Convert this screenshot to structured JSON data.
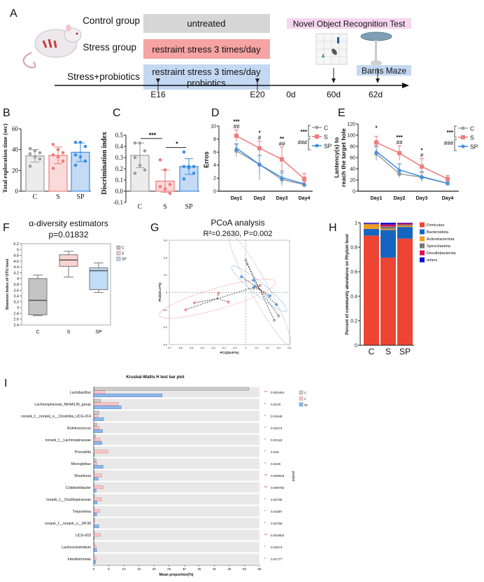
{
  "panel_labels": [
    "A",
    "B",
    "C",
    "D",
    "E",
    "F",
    "G",
    "H",
    "I"
  ],
  "panel_a": {
    "groups": [
      {
        "label": "Control group",
        "treatment": "untreated",
        "color": "#d6d6d6"
      },
      {
        "label": "Stress group",
        "treatment": "restraint stress 3 times/day",
        "color": "#f6a3a3"
      },
      {
        "label": "Stress+probiotics",
        "treatment": "restraint stress 3 times/day",
        "treatment2": "probiotics",
        "color": "#c3d8f2"
      }
    ],
    "tests": {
      "nor": "Novel Object Recognition Test",
      "nor_color": "#f7d6ef",
      "maze": "Barns Maze",
      "maze_color": "#c3d8f2"
    },
    "timeline": [
      "E16",
      "E20",
      "0d",
      "60d",
      "62d"
    ]
  },
  "colors": {
    "C": "#9e9e9e",
    "S": "#f07c7c",
    "SP": "#3a8ee6",
    "C_fill": "#ececec",
    "S_fill": "#fbdada",
    "SP_fill": "#c5daf4"
  },
  "chart_data": [
    {
      "panel": "B",
      "type": "bar",
      "ylabel": "Total exploration time (sec)",
      "categories": [
        "C",
        "S",
        "SP"
      ],
      "values": [
        34,
        34.5,
        37.5
      ],
      "sd": [
        6,
        8,
        9
      ],
      "points": [
        [
          41,
          39,
          37,
          36,
          33,
          31,
          24
        ],
        [
          45,
          40,
          37,
          35,
          33,
          29,
          22
        ],
        [
          47,
          47,
          43,
          35,
          33,
          29,
          25
        ]
      ],
      "ylim": [
        0,
        60
      ],
      "yticks": [
        "0",
        "20",
        "40",
        "60"
      ]
    },
    {
      "panel": "C",
      "type": "bar",
      "ylabel": "Discrimination index",
      "categories": [
        "C",
        "S",
        "SP"
      ],
      "values": [
        0.32,
        0.09,
        0.22
      ],
      "sd": [
        0.11,
        0.1,
        0.07
      ],
      "points": [
        [
          0.43,
          0.43,
          0.36,
          0.3,
          0.23,
          0.19,
          0.16
        ],
        [
          0.28,
          0.19,
          0.06,
          0.04,
          0.02,
          -0.02
        ],
        [
          0.35,
          0.22,
          0.22,
          0.22,
          0.21,
          0.16,
          0.11
        ]
      ],
      "ylim": [
        -0.1,
        0.5
      ],
      "yticks": [
        "-0.1",
        "0.0",
        "0.1",
        "0.2",
        "0.3",
        "0.4",
        "0.5"
      ],
      "significance": [
        {
          "pair": [
            "C",
            "S"
          ],
          "label": "***"
        },
        {
          "pair": [
            "S",
            "SP"
          ],
          "label": "*"
        }
      ]
    },
    {
      "panel": "D",
      "type": "line",
      "ylabel": "Erros",
      "categories": [
        "Day1",
        "Day2",
        "Day3",
        "Day4"
      ],
      "series": [
        {
          "name": "C",
          "values": [
            6.2,
            4.1,
            1.8,
            1.0
          ],
          "err": [
            0.9,
            2.4,
            1.0,
            0.4
          ]
        },
        {
          "name": "S",
          "values": [
            8.5,
            6.6,
            4.9,
            1.9
          ],
          "err": [
            0.9,
            1.1,
            1.9,
            0.8
          ]
        },
        {
          "name": "SP",
          "values": [
            6.6,
            4.1,
            2.1,
            1.1
          ],
          "err": [
            0.7,
            1.4,
            1.0,
            0.5
          ]
        }
      ],
      "annotations": [
        [
          "***",
          "##"
        ],
        [
          "*",
          "#"
        ],
        [
          "**",
          "##"
        ],
        [
          "",
          ""
        ]
      ],
      "legend_brackets": [
        "***",
        "###"
      ],
      "ylim": [
        0,
        10
      ],
      "yticks": [
        "0",
        "2",
        "4",
        "6",
        "8",
        "10"
      ]
    },
    {
      "panel": "E",
      "type": "line",
      "ylabel": "Lantency(s) to reach the target hole",
      "ylabel_line1": "Lantency(s) to",
      "ylabel_line2": "reach the target hole",
      "categories": [
        "Day1",
        "Day2",
        "Day3",
        "Day4"
      ],
      "series": [
        {
          "name": "C",
          "values": [
            67,
            31,
            25,
            14
          ],
          "err": [
            12,
            7,
            8,
            3
          ]
        },
        {
          "name": "S",
          "values": [
            87,
            68,
            44,
            22
          ],
          "err": [
            11,
            13,
            14,
            6
          ]
        },
        {
          "name": "SP",
          "values": [
            71,
            38,
            26,
            14
          ],
          "err": [
            10,
            11,
            9,
            3
          ]
        }
      ],
      "annotations": [
        [
          "*",
          ""
        ],
        [
          "***",
          "##"
        ],
        [
          "*",
          "#"
        ],
        [
          "",
          ""
        ]
      ],
      "legend_brackets": [
        "***",
        "###"
      ],
      "ylim": [
        0,
        120
      ],
      "yticks": [
        "0",
        "20",
        "40",
        "60",
        "80",
        "100",
        "120"
      ]
    },
    {
      "panel": "F",
      "type": "box",
      "title": "α-diversity estimators",
      "subtitle": "p=0.01832",
      "ylabel": "Shannon Index of OTU level",
      "categories": [
        "C",
        "S",
        "SP"
      ],
      "boxes": [
        {
          "min": 2.72,
          "q1": 2.75,
          "median": 3.25,
          "q3": 4.0,
          "max": 4.12
        },
        {
          "min": 4.05,
          "q1": 4.42,
          "median": 4.64,
          "q3": 4.82,
          "max": 4.94
        },
        {
          "min": 3.52,
          "q1": 3.62,
          "median": 4.27,
          "q3": 4.37,
          "max": 4.54
        }
      ],
      "legend": [
        "C",
        "S",
        "SP"
      ],
      "ylim": [
        2.4,
        5.2
      ],
      "yticks": [
        "2.4",
        "2.6",
        "2.8",
        "3",
        "3.2",
        "3.4",
        "3.6",
        "3.8",
        "4",
        "4.2",
        "4.4",
        "4.6",
        "4.8",
        "5",
        "5.2"
      ]
    },
    {
      "panel": "G",
      "type": "scatter",
      "title": "PCoA analysis",
      "subtitle": "R²=0.2630, P=0.002",
      "xlabel": "PC1(25.97%)",
      "ylabel": "PC2(16.17%)",
      "series": [
        {
          "name": "C",
          "points": [
            [
              0,
              0.37
            ],
            [
              0.01,
              0.33
            ],
            [
              0.07,
              0.05
            ],
            [
              0.26,
              -0.32
            ],
            [
              0.3,
              -0.27
            ]
          ]
        },
        {
          "name": "S",
          "points": [
            [
              -0.55,
              -0.2
            ],
            [
              -0.47,
              -0.12
            ],
            [
              -0.25,
              -0.01
            ],
            [
              -0.16,
              -0.11
            ],
            [
              0.13,
              0.08
            ]
          ]
        },
        {
          "name": "SP",
          "points": [
            [
              -0.04,
              0.18
            ],
            [
              0.07,
              0.14
            ],
            [
              0.08,
              0.07
            ],
            [
              0.22,
              -0.04
            ],
            [
              0.28,
              -0.14
            ]
          ]
        }
      ],
      "xlim": [
        -0.7,
        0.4
      ],
      "ylim": [
        -0.6,
        0.6
      ],
      "xticks": [
        "-0.7",
        "-0.6",
        "-0.5",
        "-0.4",
        "-0.3",
        "-0.2",
        "-0.1",
        "0",
        "0.1",
        "0.2",
        "0.3",
        "0.4"
      ],
      "yticks": [
        "-0.6",
        "-0.4",
        "-0.2",
        "0",
        "0.2",
        "0.4",
        "0.6"
      ]
    },
    {
      "panel": "H",
      "type": "stacked-bar",
      "ylabel": "Percent of community abundance on Phylum level",
      "categories": [
        "C",
        "S",
        "SP"
      ],
      "series": [
        {
          "name": "Firmicutes",
          "color": "#ee4433",
          "values": [
            0.895,
            0.715,
            0.87
          ]
        },
        {
          "name": "Bacteroidota",
          "color": "#1565c0",
          "values": [
            0.055,
            0.225,
            0.095
          ]
        },
        {
          "name": "Actinobacteriota",
          "color": "#f59c1a",
          "values": [
            0.035,
            0.01,
            0.01
          ]
        },
        {
          "name": "Spirochaetota",
          "color": "#777777",
          "values": [
            0.005,
            0.02,
            0.01
          ]
        },
        {
          "name": "Desulfobacterota",
          "color": "#e0105a",
          "values": [
            0.003,
            0.015,
            0.01
          ]
        },
        {
          "name": "others",
          "color": "#1010d0",
          "values": [
            0.007,
            0.015,
            0.005
          ]
        }
      ],
      "ylim": [
        0,
        1
      ],
      "yticks": [
        "0",
        "0.2",
        "0.4",
        "0.6",
        "0.8",
        "1"
      ]
    },
    {
      "panel": "I",
      "type": "bar-horizontal",
      "title": "Kruskal-Wallis H test bar plot",
      "xlabel": "Mean proportion(%)",
      "pvalue_label": "pvalue",
      "legend": [
        "C",
        "s",
        "sp"
      ],
      "categories": [
        "Lactobacillus",
        "Lachnospiraceae_NK4A136_group",
        "norank_f__norank_o__Clostridia_UCG-014",
        "Ruminococcus",
        "norank_f__Lachnospiraceae",
        "Prevotella",
        "Monoglobus",
        "Roseburia",
        "Colidextribacter",
        "norank_f__Oscillospiraceae",
        "Treponema",
        "norank_f__norank_o__RF39",
        "UCG-003",
        "Lachnoclostridium",
        "Intestinimonas"
      ],
      "series": [
        {
          "name": "C",
          "values": [
            51.5,
            2.2,
            1.8,
            1.0,
            0.6,
            0.1,
            0.8,
            0.2,
            0.1,
            0.2,
            0.1,
            0.3,
            0.1,
            0.2,
            0.1
          ]
        },
        {
          "name": "s",
          "values": [
            3.7,
            8.2,
            1.4,
            1.8,
            2.2,
            4.7,
            1.0,
            2.7,
            3.2,
            2.7,
            2.0,
            0.2,
            2.2,
            0.8,
            0.8
          ]
        },
        {
          "name": "sp",
          "values": [
            22.7,
            9.1,
            3.3,
            2.9,
            2.7,
            0.2,
            3.1,
            1.5,
            0.8,
            1.1,
            1.0,
            1.7,
            0.2,
            1.0,
            0.6
          ]
        }
      ],
      "stars": [
        "**",
        "*",
        "*",
        "*",
        "*",
        "*",
        "*",
        "**",
        "**",
        "*",
        "*",
        "*",
        "**",
        "*",
        "*"
      ],
      "pvalues": [
        "0.002454",
        "0.0133",
        "0.01545",
        "0.03474",
        "0.02119",
        "0.045",
        "0.0226",
        "0.008929",
        "0.009755",
        "0.02705",
        "0.01897",
        "0.03756",
        "0.002903",
        "0.03474",
        "0.01777"
      ],
      "xlim": [
        0,
        55
      ],
      "xticks": [
        "0",
        "5",
        "10",
        "15",
        "20",
        "25",
        "30",
        "35",
        "40",
        "45",
        "50",
        "55"
      ]
    }
  ]
}
